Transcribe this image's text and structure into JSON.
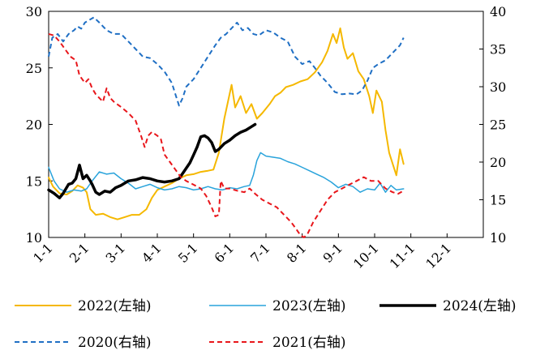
{
  "chart_data": {
    "type": "line",
    "x_tick_labels": [
      "1-1",
      "2-1",
      "3-1",
      "4-1",
      "5-1",
      "6-1",
      "7-1",
      "8-1",
      "9-1",
      "10-1",
      "11-1",
      "12-1"
    ],
    "left_axis": {
      "ylim": [
        10,
        30
      ],
      "ticks": [
        10,
        15,
        20,
        25,
        30
      ]
    },
    "right_axis": {
      "ylim": [
        10,
        40
      ],
      "ticks": [
        10,
        15,
        20,
        25,
        30,
        35,
        40
      ]
    },
    "legend_placement": "bottom",
    "grid": false,
    "series": [
      {
        "name": "2022(左轴)",
        "axis": "left",
        "color": "#F5B800",
        "dash": "solid",
        "width": 2,
        "points": [
          [
            0,
            15.3
          ],
          [
            0.12,
            14.5
          ],
          [
            0.3,
            13.9
          ],
          [
            0.5,
            13.8
          ],
          [
            0.65,
            14.1
          ],
          [
            0.8,
            14.6
          ],
          [
            0.95,
            14.4
          ],
          [
            1.05,
            14.0
          ],
          [
            1.15,
            12.5
          ],
          [
            1.3,
            12.0
          ],
          [
            1.5,
            12.1
          ],
          [
            1.7,
            11.8
          ],
          [
            1.9,
            11.6
          ],
          [
            2.1,
            11.8
          ],
          [
            2.3,
            12.0
          ],
          [
            2.5,
            12.0
          ],
          [
            2.7,
            12.5
          ],
          [
            2.85,
            13.5
          ],
          [
            3.0,
            14.2
          ],
          [
            3.2,
            14.5
          ],
          [
            3.4,
            14.8
          ],
          [
            3.6,
            15.2
          ],
          [
            3.8,
            15.5
          ],
          [
            4.0,
            15.6
          ],
          [
            4.2,
            15.8
          ],
          [
            4.4,
            15.9
          ],
          [
            4.55,
            16.0
          ],
          [
            4.7,
            17.5
          ],
          [
            4.85,
            20.5
          ],
          [
            4.95,
            22.0
          ],
          [
            5.05,
            23.5
          ],
          [
            5.15,
            21.5
          ],
          [
            5.3,
            22.5
          ],
          [
            5.45,
            21.0
          ],
          [
            5.6,
            21.8
          ],
          [
            5.75,
            20.5
          ],
          [
            5.9,
            21.0
          ],
          [
            6.1,
            21.8
          ],
          [
            6.25,
            22.5
          ],
          [
            6.4,
            22.8
          ],
          [
            6.55,
            23.3
          ],
          [
            6.75,
            23.5
          ],
          [
            6.95,
            23.8
          ],
          [
            7.15,
            24.0
          ],
          [
            7.35,
            24.6
          ],
          [
            7.55,
            25.5
          ],
          [
            7.7,
            26.5
          ],
          [
            7.85,
            28.0
          ],
          [
            7.95,
            27.2
          ],
          [
            8.05,
            28.5
          ],
          [
            8.15,
            26.8
          ],
          [
            8.25,
            25.8
          ],
          [
            8.4,
            26.3
          ],
          [
            8.55,
            24.7
          ],
          [
            8.7,
            24.0
          ],
          [
            8.85,
            22.5
          ],
          [
            8.95,
            21.0
          ],
          [
            9.05,
            23.0
          ],
          [
            9.2,
            22.0
          ],
          [
            9.3,
            19.5
          ],
          [
            9.4,
            17.5
          ],
          [
            9.5,
            16.5
          ],
          [
            9.6,
            15.5
          ],
          [
            9.7,
            17.8
          ],
          [
            9.8,
            16.5
          ]
        ]
      },
      {
        "name": "2023(左轴)",
        "axis": "left",
        "color": "#29A3DB",
        "dash": "solid",
        "width": 1.5,
        "points": [
          [
            0,
            16.2
          ],
          [
            0.15,
            15.0
          ],
          [
            0.3,
            14.3
          ],
          [
            0.5,
            14.0
          ],
          [
            0.7,
            14.2
          ],
          [
            0.9,
            14.1
          ],
          [
            1.05,
            14.3
          ],
          [
            1.2,
            15.0
          ],
          [
            1.4,
            15.8
          ],
          [
            1.6,
            15.6
          ],
          [
            1.8,
            15.7
          ],
          [
            2.0,
            15.2
          ],
          [
            2.2,
            14.8
          ],
          [
            2.4,
            14.3
          ],
          [
            2.6,
            14.5
          ],
          [
            2.8,
            14.7
          ],
          [
            3.0,
            14.4
          ],
          [
            3.2,
            14.2
          ],
          [
            3.4,
            14.3
          ],
          [
            3.6,
            14.5
          ],
          [
            3.8,
            14.4
          ],
          [
            4.0,
            14.2
          ],
          [
            4.2,
            14.3
          ],
          [
            4.4,
            14.5
          ],
          [
            4.6,
            14.3
          ],
          [
            4.8,
            14.2
          ],
          [
            5.0,
            14.4
          ],
          [
            5.2,
            14.3
          ],
          [
            5.4,
            14.5
          ],
          [
            5.55,
            14.6
          ],
          [
            5.65,
            15.5
          ],
          [
            5.75,
            16.8
          ],
          [
            5.85,
            17.5
          ],
          [
            6.0,
            17.2
          ],
          [
            6.2,
            17.1
          ],
          [
            6.4,
            17.0
          ],
          [
            6.6,
            16.7
          ],
          [
            6.8,
            16.5
          ],
          [
            7.0,
            16.2
          ],
          [
            7.2,
            15.9
          ],
          [
            7.4,
            15.6
          ],
          [
            7.6,
            15.3
          ],
          [
            7.8,
            14.9
          ],
          [
            8.0,
            14.4
          ],
          [
            8.2,
            14.7
          ],
          [
            8.4,
            14.5
          ],
          [
            8.6,
            14.0
          ],
          [
            8.8,
            14.3
          ],
          [
            9.0,
            14.2
          ],
          [
            9.15,
            14.8
          ],
          [
            9.3,
            14.0
          ],
          [
            9.45,
            14.6
          ],
          [
            9.6,
            14.2
          ],
          [
            9.8,
            14.3
          ]
        ]
      },
      {
        "name": "2024(左轴)",
        "axis": "left",
        "color": "#000000",
        "dash": "solid",
        "width": 3.5,
        "points": [
          [
            0,
            14.2
          ],
          [
            0.15,
            13.9
          ],
          [
            0.3,
            13.5
          ],
          [
            0.4,
            13.9
          ],
          [
            0.55,
            14.7
          ],
          [
            0.65,
            14.8
          ],
          [
            0.75,
            15.2
          ],
          [
            0.85,
            16.4
          ],
          [
            0.95,
            15.2
          ],
          [
            1.05,
            15.5
          ],
          [
            1.15,
            15.0
          ],
          [
            1.2,
            14.7
          ],
          [
            1.3,
            14.0
          ],
          [
            1.4,
            13.8
          ],
          [
            1.55,
            14.1
          ],
          [
            1.7,
            14.0
          ],
          [
            1.85,
            14.4
          ],
          [
            2.0,
            14.6
          ],
          [
            2.2,
            15.0
          ],
          [
            2.4,
            15.1
          ],
          [
            2.6,
            15.3
          ],
          [
            2.8,
            15.2
          ],
          [
            3.0,
            15.0
          ],
          [
            3.2,
            14.9
          ],
          [
            3.4,
            15.0
          ],
          [
            3.6,
            15.2
          ],
          [
            3.75,
            15.9
          ],
          [
            3.9,
            16.6
          ],
          [
            4.0,
            17.3
          ],
          [
            4.1,
            18.0
          ],
          [
            4.2,
            18.9
          ],
          [
            4.3,
            19.0
          ],
          [
            4.4,
            18.8
          ],
          [
            4.5,
            18.4
          ],
          [
            4.6,
            17.6
          ],
          [
            4.7,
            17.8
          ],
          [
            4.85,
            18.3
          ],
          [
            5.0,
            18.6
          ],
          [
            5.15,
            19.0
          ],
          [
            5.3,
            19.3
          ],
          [
            5.45,
            19.5
          ],
          [
            5.6,
            19.8
          ],
          [
            5.7,
            20.0
          ]
        ]
      },
      {
        "name": "2020(右轴)",
        "axis": "right",
        "color": "#1F6FC4",
        "dash": "dashed",
        "width": 2,
        "points": [
          [
            0,
            34.0
          ],
          [
            0.1,
            36.5
          ],
          [
            0.25,
            37.0
          ],
          [
            0.4,
            36.0
          ],
          [
            0.55,
            37.0
          ],
          [
            0.7,
            37.5
          ],
          [
            0.8,
            38.0
          ],
          [
            0.9,
            37.7
          ],
          [
            1.0,
            38.5
          ],
          [
            1.1,
            38.8
          ],
          [
            1.25,
            39.2
          ],
          [
            1.4,
            38.5
          ],
          [
            1.6,
            37.5
          ],
          [
            1.8,
            37.0
          ],
          [
            2.0,
            37.0
          ],
          [
            2.2,
            36.0
          ],
          [
            2.4,
            35.0
          ],
          [
            2.6,
            34.0
          ],
          [
            2.8,
            33.8
          ],
          [
            3.0,
            33.0
          ],
          [
            3.2,
            32.0
          ],
          [
            3.4,
            30.5
          ],
          [
            3.5,
            29.0
          ],
          [
            3.6,
            27.5
          ],
          [
            3.7,
            28.5
          ],
          [
            3.8,
            30.0
          ],
          [
            4.0,
            31.0
          ],
          [
            4.2,
            32.5
          ],
          [
            4.4,
            34.0
          ],
          [
            4.6,
            35.5
          ],
          [
            4.75,
            36.5
          ],
          [
            4.9,
            37.0
          ],
          [
            5.0,
            37.5
          ],
          [
            5.1,
            38.0
          ],
          [
            5.2,
            38.5
          ],
          [
            5.35,
            37.5
          ],
          [
            5.5,
            37.8
          ],
          [
            5.65,
            37.0
          ],
          [
            5.8,
            36.8
          ],
          [
            6.0,
            37.5
          ],
          [
            6.2,
            37.2
          ],
          [
            6.4,
            36.5
          ],
          [
            6.6,
            36.0
          ],
          [
            6.8,
            34.0
          ],
          [
            7.0,
            33.0
          ],
          [
            7.1,
            33.2
          ],
          [
            7.2,
            33.4
          ],
          [
            7.35,
            32.5
          ],
          [
            7.5,
            31.5
          ],
          [
            7.7,
            30.5
          ],
          [
            7.9,
            29.3
          ],
          [
            8.1,
            29.0
          ],
          [
            8.3,
            29.1
          ],
          [
            8.5,
            29.0
          ],
          [
            8.65,
            29.5
          ],
          [
            8.8,
            30.8
          ],
          [
            8.95,
            32.5
          ],
          [
            9.1,
            33.0
          ],
          [
            9.3,
            33.5
          ],
          [
            9.5,
            34.5
          ],
          [
            9.7,
            35.5
          ],
          [
            9.8,
            36.5
          ]
        ]
      },
      {
        "name": "2021(右轴)",
        "axis": "right",
        "color": "#E8161B",
        "dash": "dashed",
        "width": 2,
        "points": [
          [
            0,
            37.0
          ],
          [
            0.15,
            36.8
          ],
          [
            0.3,
            36.0
          ],
          [
            0.45,
            35.0
          ],
          [
            0.6,
            34.0
          ],
          [
            0.75,
            33.5
          ],
          [
            0.85,
            31.5
          ],
          [
            1.0,
            30.5
          ],
          [
            1.1,
            31.0
          ],
          [
            1.2,
            29.8
          ],
          [
            1.3,
            29.0
          ],
          [
            1.4,
            28.5
          ],
          [
            1.5,
            28.0
          ],
          [
            1.6,
            29.8
          ],
          [
            1.7,
            28.5
          ],
          [
            1.8,
            28.0
          ],
          [
            2.0,
            27.3
          ],
          [
            2.2,
            26.5
          ],
          [
            2.4,
            25.5
          ],
          [
            2.55,
            23.5
          ],
          [
            2.65,
            22.0
          ],
          [
            2.75,
            23.5
          ],
          [
            2.85,
            24.0
          ],
          [
            3.0,
            23.5
          ],
          [
            3.1,
            23.0
          ],
          [
            3.2,
            21.0
          ],
          [
            3.35,
            20.0
          ],
          [
            3.5,
            19.0
          ],
          [
            3.65,
            18.0
          ],
          [
            3.8,
            17.5
          ],
          [
            4.0,
            17.0
          ],
          [
            4.2,
            16.5
          ],
          [
            4.35,
            15.5
          ],
          [
            4.5,
            14.0
          ],
          [
            4.6,
            12.8
          ],
          [
            4.7,
            13.0
          ],
          [
            4.75,
            17.5
          ],
          [
            4.85,
            16.5
          ],
          [
            5.0,
            16.5
          ],
          [
            5.2,
            16.2
          ],
          [
            5.4,
            16.0
          ],
          [
            5.55,
            16.5
          ],
          [
            5.7,
            15.8
          ],
          [
            5.9,
            15.0
          ],
          [
            6.1,
            14.5
          ],
          [
            6.3,
            14.0
          ],
          [
            6.5,
            13.0
          ],
          [
            6.7,
            12.0
          ],
          [
            6.85,
            11.0
          ],
          [
            6.95,
            10.3
          ],
          [
            7.05,
            10.0
          ],
          [
            7.15,
            10.5
          ],
          [
            7.3,
            12.0
          ],
          [
            7.5,
            13.5
          ],
          [
            7.7,
            15.0
          ],
          [
            7.9,
            16.0
          ],
          [
            8.1,
            16.5
          ],
          [
            8.3,
            17.0
          ],
          [
            8.5,
            17.5
          ],
          [
            8.7,
            18.0
          ],
          [
            8.9,
            17.5
          ],
          [
            9.1,
            17.5
          ],
          [
            9.3,
            16.5
          ],
          [
            9.5,
            16.0
          ],
          [
            9.65,
            15.8
          ],
          [
            9.8,
            16.2
          ]
        ]
      }
    ]
  }
}
